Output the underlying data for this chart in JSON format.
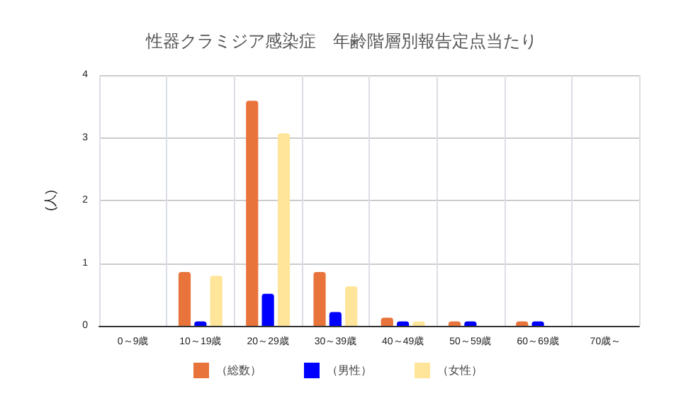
{
  "chart_data": {
    "type": "bar",
    "title": "性器クラミジア感染症　年齢階層別報告定点当たり",
    "ylabel": "(人)",
    "categories": [
      "0～9歳",
      "10～19歳",
      "20～29歳",
      "30～39歳",
      "40～49歳",
      "50～59歳",
      "60～69歳",
      "70歳～"
    ],
    "series": [
      {
        "name": "（総数）",
        "color": "#e8743b",
        "values": [
          0,
          0.86,
          3.59,
          0.86,
          0.13,
          0.07,
          0.07,
          0
        ]
      },
      {
        "name": "（男性）",
        "color": "#0000ff",
        "values": [
          0,
          0.07,
          0.51,
          0.22,
          0.07,
          0.07,
          0.07,
          0
        ]
      },
      {
        "name": "（女性）",
        "color": "#ffe599",
        "values": [
          0,
          0.8,
          3.07,
          0.63,
          0.07,
          0,
          0,
          0
        ]
      }
    ],
    "ylim": [
      0,
      4
    ],
    "yticks": [
      0,
      1,
      2,
      3,
      4
    ],
    "grid": true,
    "legend": "bottom"
  }
}
